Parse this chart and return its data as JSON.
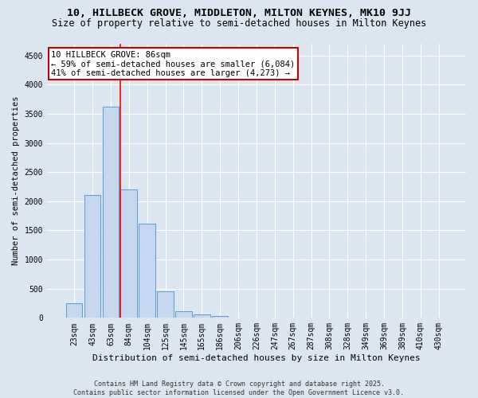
{
  "title1": "10, HILLBECK GROVE, MIDDLETON, MILTON KEYNES, MK10 9JJ",
  "title2": "Size of property relative to semi-detached houses in Milton Keynes",
  "xlabel": "Distribution of semi-detached houses by size in Milton Keynes",
  "ylabel": "Number of semi-detached properties",
  "categories": [
    "23sqm",
    "43sqm",
    "63sqm",
    "84sqm",
    "104sqm",
    "125sqm",
    "145sqm",
    "165sqm",
    "186sqm",
    "206sqm",
    "226sqm",
    "247sqm",
    "267sqm",
    "287sqm",
    "308sqm",
    "328sqm",
    "349sqm",
    "369sqm",
    "389sqm",
    "410sqm",
    "430sqm"
  ],
  "values": [
    250,
    2100,
    3620,
    2200,
    1620,
    450,
    120,
    60,
    30,
    0,
    0,
    0,
    0,
    0,
    0,
    0,
    0,
    0,
    0,
    0,
    0
  ],
  "bar_color": "#c5d8f0",
  "bar_edge_color": "#5b9bd5",
  "background_color": "#dce6f1",
  "plot_bg_color": "#dce6f1",
  "grid_color": "#ffffff",
  "annotation_text": "10 HILLBECK GROVE: 86sqm\n← 59% of semi-detached houses are smaller (6,084)\n41% of semi-detached houses are larger (4,273) →",
  "annotation_box_color": "#ffffff",
  "annotation_border_color": "#cc0000",
  "prop_line_index": 2.55,
  "ylim": [
    0,
    4700
  ],
  "yticks": [
    0,
    500,
    1000,
    1500,
    2000,
    2500,
    3000,
    3500,
    4000,
    4500
  ],
  "footnote": "Contains HM Land Registry data © Crown copyright and database right 2025.\nContains public sector information licensed under the Open Government Licence v3.0.",
  "title1_fontsize": 9.5,
  "title2_fontsize": 8.5,
  "xlabel_fontsize": 8,
  "ylabel_fontsize": 7.5,
  "tick_fontsize": 7,
  "annotation_fontsize": 7.5,
  "footnote_fontsize": 6
}
